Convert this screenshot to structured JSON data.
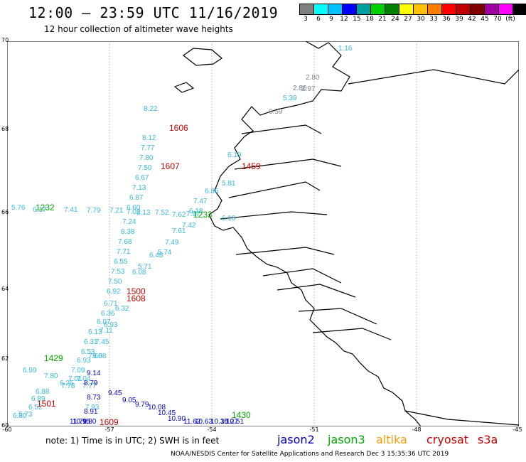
{
  "header": {
    "title": "12:00 – 23:59 UTC 11/16/2019",
    "subtitle": "12 hour collection of altimeter wave heights"
  },
  "scale": {
    "colors": [
      "#808080",
      "#00ffff",
      "#00c0ff",
      "#0000ff",
      "#00a0a0",
      "#00d000",
      "#008000",
      "#ffff00",
      "#ffc000",
      "#ff8000",
      "#ff0000",
      "#c00000",
      "#800000",
      "#a000a0",
      "#ff00ff",
      "#000000"
    ],
    "labels": [
      "3",
      "6",
      "9",
      "12",
      "15",
      "18",
      "21",
      "24",
      "27",
      "30",
      "33",
      "36",
      "39",
      "42",
      "45",
      "70",
      "(ft)"
    ]
  },
  "axes": {
    "lat": [
      "70",
      "68",
      "66",
      "64",
      "62",
      "60"
    ],
    "lon": [
      "-60",
      "-57",
      "-54",
      "-51",
      "-48",
      "-45"
    ]
  },
  "colors": {
    "jason2": "#0000cc",
    "jason3": "#00aa00",
    "altika": "#ff9900",
    "cryosat": "#cc0000",
    "s3a": "#cc0000",
    "cyan": "#33bbdd",
    "gray": "#888888"
  },
  "note": "note: 1) Time is in UTC; 2) SWH is in feet",
  "legend": [
    {
      "label": "jason2",
      "color": "#0000cc"
    },
    {
      "label": "jason3",
      "color": "#00aa00"
    },
    {
      "label": "altika",
      "color": "#ff9900"
    },
    {
      "label": "cryosat",
      "color": "#cc0000"
    },
    {
      "label": "s3a",
      "color": "#cc0000"
    }
  ],
  "credit": "NOAA/NESDIS Center for Satellite Applications and Research   Dec  3 15:35:36 UTC 2019",
  "pass_times": [
    {
      "label": "1606",
      "color": "#cc0000"
    },
    {
      "label": "1607",
      "color": "#cc0000"
    },
    {
      "label": "1459",
      "color": "#cc0000"
    },
    {
      "label": "1232",
      "color": "#00aa00"
    },
    {
      "label": "1233",
      "color": "#00aa00"
    },
    {
      "label": "1500",
      "color": "#cc0000"
    },
    {
      "label": "1608",
      "color": "#cc0000"
    },
    {
      "label": "1429",
      "color": "#00aa00"
    },
    {
      "label": "1501",
      "color": "#cc0000"
    },
    {
      "label": "1609",
      "color": "#cc0000"
    },
    {
      "label": "1430",
      "color": "#00aa00"
    }
  ],
  "tracks": {
    "cryosat_north": {
      "color": "#33bbdd",
      "values": [
        "8.22",
        "8.12",
        "7.77",
        "7.80",
        "7.50",
        "6.67",
        "7.13",
        "6.87",
        "6.60",
        "7.24",
        "8.38",
        "7.68",
        "7.71",
        "6.55",
        "7.53",
        "7.50",
        "6.92"
      ]
    },
    "s3a_northeast": {
      "color": "#33bbdd",
      "values": [
        "1.16",
        "2.80",
        "5.39",
        "6.19",
        "5.81",
        "6.86",
        "7.47",
        "6.18",
        "7.42",
        "7.61",
        "7.49",
        "5.74",
        "6.48",
        "5.71",
        "6.08",
        "6.32"
      ]
    },
    "gray_near_coast": {
      "color": "#888888",
      "values": [
        "2.80",
        "2.97",
        "2.80",
        "0.59"
      ]
    },
    "jason3_west": {
      "color": "#33bbdd",
      "values": [
        "5.76",
        "6.17",
        "7.41",
        "7.79",
        "7.21",
        "7.02",
        "8.13",
        "7.52",
        "7.62",
        "7.97",
        "6.18"
      ]
    },
    "cryosat_south": {
      "color": "#33bbdd",
      "values": [
        "6.71",
        "6.36",
        "6.07",
        "6.93",
        "6.13",
        "7.11",
        "6.31",
        "7.45",
        "6.53",
        "7.66",
        "6.93",
        "8.08",
        "7.09",
        "7.04",
        "7.01",
        "6.25",
        "7.78",
        "6.88",
        "6.89",
        "6.52",
        "5.73",
        "6.80",
        "6.99",
        "7.80",
        "7.77"
      ]
    },
    "jason2_south": {
      "color": "#0000cc",
      "values": [
        "9.14",
        "8.79",
        "8.73",
        "8.91",
        "9.80",
        "10.15",
        "11.79",
        "9.45",
        "9.05",
        "9.79",
        "10.08",
        "10.45",
        "10.90",
        "11.62",
        "10.63",
        "10.35",
        "10.27",
        "10.51"
      ]
    },
    "s3a_south": {
      "color": "#33bbdd",
      "values": [
        "7.93"
      ]
    }
  }
}
